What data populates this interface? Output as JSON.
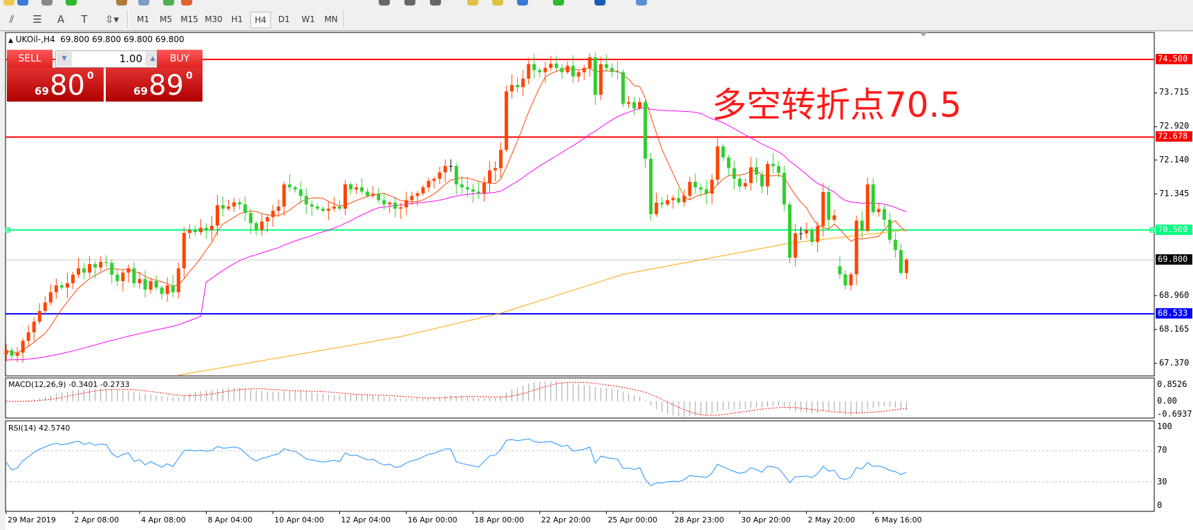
{
  "toolbar": {
    "top_icons": [
      "favorites-icon",
      "new-chart-icon",
      "zoom-icon",
      "add-icon",
      "market-icon",
      "window-icon",
      "history-icon",
      "alert-icon",
      "chart-bar-icon",
      "chart-candle-icon",
      "chart-line-icon",
      "pencil-icon",
      "pencil-icon-2",
      "tile-icon",
      "add-icon-2",
      "globe-icon",
      "mail-icon"
    ],
    "tools": [
      {
        "name": "elliott-icon",
        "glyph": "⫽"
      },
      {
        "name": "fibonacci-icon",
        "glyph": "☰"
      },
      {
        "name": "text-icon",
        "glyph": "A"
      },
      {
        "name": "text-label-icon",
        "glyph": "T"
      },
      {
        "name": "arrows-icon",
        "glyph": "⇳▾"
      }
    ],
    "timeframes": [
      "M1",
      "M5",
      "M15",
      "M30",
      "H1",
      "H4",
      "D1",
      "W1",
      "MN"
    ],
    "active_timeframe": "H4"
  },
  "chart": {
    "header": "UKOil-,H4  69.800 69.800 69.800 69.800",
    "collapse_icon": "▲"
  },
  "trade_panel": {
    "sell_label": "SELL",
    "buy_label": "BUY",
    "lot": "1.00",
    "sell_small": "69",
    "sell_big": "80",
    "sell_sup": "0",
    "buy_small": "69",
    "buy_big": "89",
    "buy_sup": "0"
  },
  "annotation": "多空转折点70.5",
  "colors": {
    "up": "#ff4500",
    "down": "#32cd32",
    "ma_fast": "#ff4500",
    "ma_mid": "#ff00ff",
    "ma_slow": "#ffa500",
    "rsi": "#1e90ff",
    "macd_signal": "#ff0000",
    "macd_hist": "#a0a0a0"
  },
  "chart_data": {
    "type": "candlestick",
    "symbol": "UKOil-",
    "timeframe": "H4",
    "price_range": [
      67.08,
      74.92
    ],
    "price_ticks": [
      "73.715",
      "72.920",
      "72.140",
      "71.345",
      "68.960",
      "68.165",
      "67.370"
    ],
    "closes": [
      67.68,
      67.55,
      67.62,
      67.9,
      68.1,
      68.35,
      68.6,
      68.8,
      69.04,
      69.2,
      69.15,
      69.25,
      69.45,
      69.6,
      69.5,
      69.7,
      69.62,
      69.75,
      69.73,
      69.45,
      69.3,
      69.5,
      69.6,
      69.25,
      69.35,
      69.1,
      69.3,
      69.15,
      69.0,
      69.2,
      69.04,
      69.6,
      70.43,
      70.5,
      70.45,
      70.55,
      70.5,
      70.6,
      71.08,
      71.0,
      71.05,
      71.15,
      71.1,
      70.9,
      70.66,
      70.5,
      70.7,
      70.8,
      70.95,
      71.05,
      71.57,
      71.5,
      71.45,
      71.3,
      71.1,
      71.05,
      71.0,
      70.95,
      71.0,
      71.05,
      71.0,
      71.57,
      71.45,
      71.5,
      71.4,
      71.3,
      71.35,
      71.2,
      71.1,
      71.14,
      71.0,
      71.03,
      71.2,
      71.3,
      71.36,
      71.5,
      71.65,
      71.7,
      71.85,
      72.0,
      72.0,
      71.57,
      71.5,
      71.45,
      71.4,
      71.36,
      71.6,
      71.9,
      71.95,
      72.38,
      73.75,
      73.9,
      73.85,
      74.05,
      74.39,
      74.25,
      74.2,
      74.3,
      74.4,
      74.3,
      74.2,
      74.35,
      74.1,
      74.2,
      74.3,
      74.55,
      73.67,
      74.39,
      74.3,
      74.22,
      74.2,
      73.46,
      73.5,
      73.35,
      73.5,
      72.17,
      70.87,
      71.14,
      71.1,
      71.2,
      71.25,
      71.15,
      71.3,
      71.63,
      71.5,
      71.45,
      71.35,
      71.68,
      72.46,
      72.2,
      71.95,
      71.7,
      71.52,
      71.6,
      71.97,
      71.8,
      71.52,
      72.05,
      72.0,
      71.84,
      71.1,
      69.85,
      70.42,
      70.42,
      70.5,
      70.22,
      70.59,
      71.39,
      70.74,
      70.84,
      69.46,
      69.2,
      69.46,
      70.72,
      70.48,
      71.57,
      70.92,
      70.99,
      70.74,
      70.27,
      70.03,
      69.49,
      69.8
    ],
    "hlines": [
      {
        "price": 74.5,
        "label": "74.500",
        "color": "#ff0000"
      },
      {
        "price": 72.678,
        "label": "72.678",
        "color": "#ff0000"
      },
      {
        "price": 70.5,
        "label": "70.500",
        "color": "#00ff7f"
      },
      {
        "price": 68.533,
        "label": "68.533",
        "color": "#0000ff"
      }
    ],
    "current_price": {
      "price": 69.8,
      "label": "69.800",
      "color": "#000000"
    },
    "slow_ma_points": [
      [
        31,
        67.08
      ],
      [
        71,
        68.0
      ],
      [
        89,
        68.55
      ],
      [
        111,
        69.46
      ],
      [
        141,
        70.19
      ],
      [
        162,
        70.5
      ]
    ],
    "time_labels": [
      {
        "bar": 0,
        "label": "29 Mar 2019"
      },
      {
        "bar": 12,
        "label": "2 Apr 08:00"
      },
      {
        "bar": 24,
        "label": "4 Apr 08:00"
      },
      {
        "bar": 36,
        "label": "8 Apr 04:00"
      },
      {
        "bar": 48,
        "label": "10 Apr 04:00"
      },
      {
        "bar": 60,
        "label": "12 Apr 04:00"
      },
      {
        "bar": 72,
        "label": "16 Apr 00:00"
      },
      {
        "bar": 84,
        "label": "18 Apr 00:00"
      },
      {
        "bar": 96,
        "label": "22 Apr 20:00"
      },
      {
        "bar": 108,
        "label": "25 Apr 00:00"
      },
      {
        "bar": 120,
        "label": "28 Apr 23:00"
      },
      {
        "bar": 132,
        "label": "30 Apr 20:00"
      },
      {
        "bar": 144,
        "label": "2 May 20:00"
      },
      {
        "bar": 156,
        "label": "6 May 16:00"
      }
    ],
    "macd": {
      "label": "MACD(12,26,9) -0.3401 -0.2733",
      "range": [
        -0.6937,
        0.8526
      ],
      "ticks": [
        "0.8526",
        "0.00",
        "-0.6937"
      ]
    },
    "rsi": {
      "label": "RSI(14) 42.5740",
      "range": [
        0,
        100
      ],
      "ticks": [
        "100",
        "70",
        "30",
        "0"
      ],
      "levels": [
        70,
        30
      ]
    }
  }
}
